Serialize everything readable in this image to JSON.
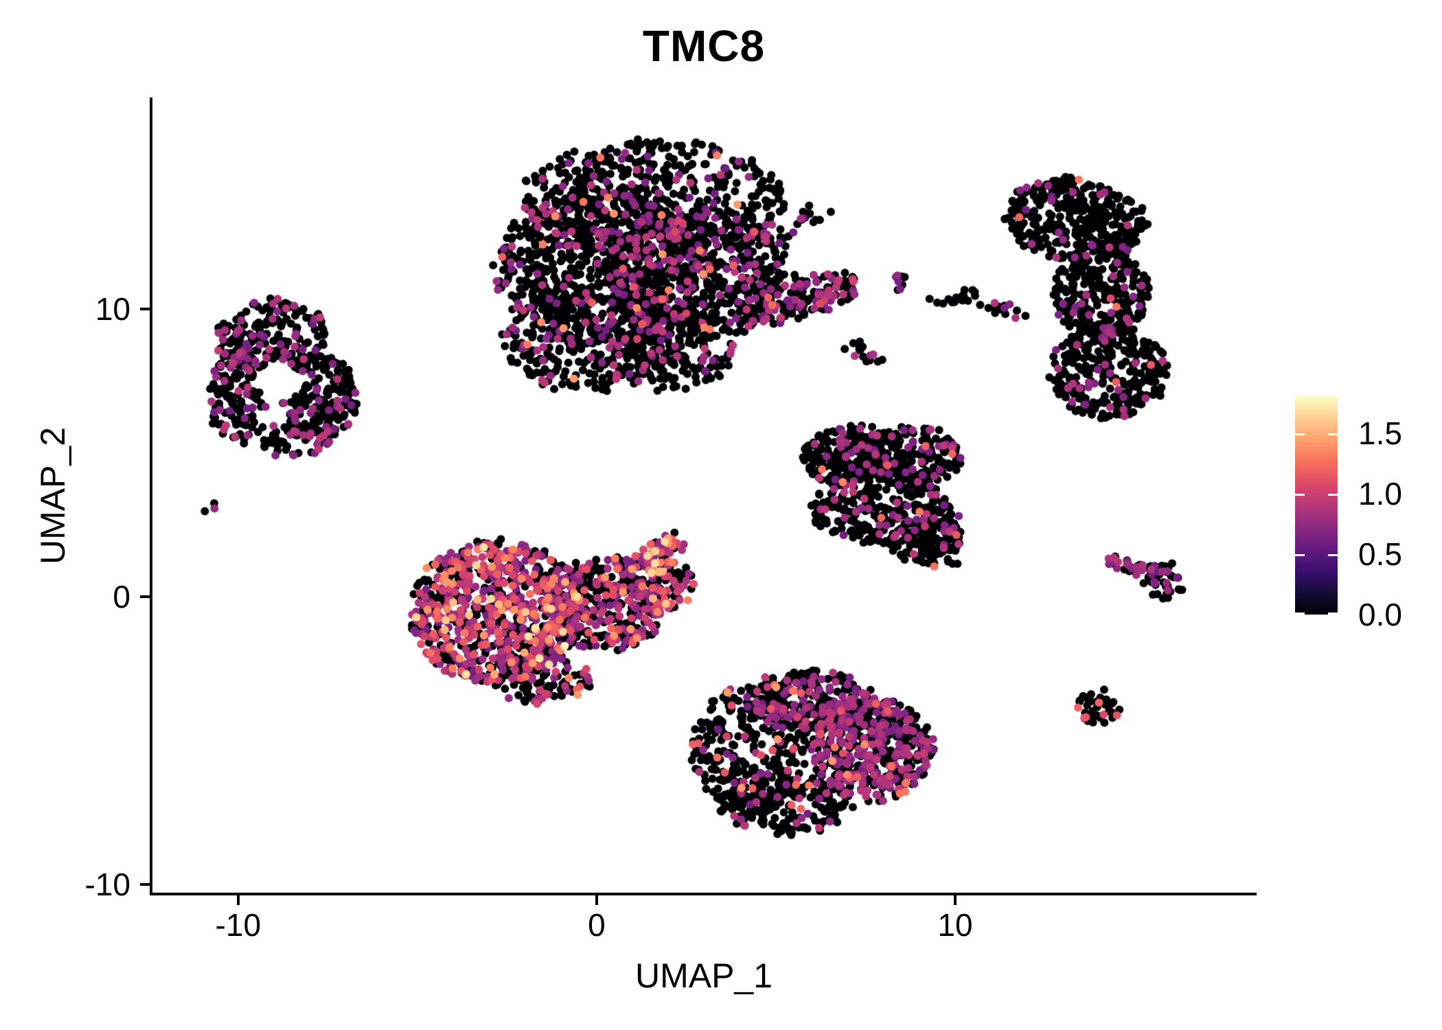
{
  "title": "TMC8",
  "axes": {
    "x": {
      "label": "UMAP_1",
      "range": [
        -12.39,
        18.37
      ],
      "ticks": [
        {
          "v": -10,
          "label": "-10"
        },
        {
          "v": 0,
          "label": "0"
        },
        {
          "v": 10,
          "label": "10"
        }
      ]
    },
    "y": {
      "label": "UMAP_2",
      "range": [
        -10.33,
        17.35
      ],
      "ticks": [
        {
          "v": -10,
          "label": "-10"
        },
        {
          "v": 0,
          "label": "0"
        },
        {
          "v": 10,
          "label": "10"
        }
      ]
    }
  },
  "legend": {
    "vmin": 0,
    "vmax": 1.81,
    "ticks": [
      {
        "v": 0.0,
        "label": "0.0"
      },
      {
        "v": 0.5,
        "label": "0.5"
      },
      {
        "v": 1.0,
        "label": "1.0"
      },
      {
        "v": 1.5,
        "label": "1.5"
      }
    ]
  },
  "colormap": {
    "name": "magma",
    "stops": [
      [
        0.0,
        "#000004"
      ],
      [
        0.1,
        "#140e36"
      ],
      [
        0.2,
        "#3b0f70"
      ],
      [
        0.3,
        "#641a80"
      ],
      [
        0.4,
        "#8c2981"
      ],
      [
        0.5,
        "#b73779"
      ],
      [
        0.6,
        "#de4968"
      ],
      [
        0.7,
        "#f7705c"
      ],
      [
        0.8,
        "#fe9f6d"
      ],
      [
        0.9,
        "#fecf92"
      ],
      [
        1.0,
        "#fcfdbf"
      ]
    ]
  },
  "chart_data": {
    "type": "scatter",
    "title": "TMC8",
    "xlabel": "UMAP_1",
    "ylabel": "UMAP_2",
    "xlim": [
      -12.39,
      18.37
    ],
    "ylim": [
      -10.33,
      17.35
    ],
    "grid": false,
    "legend_position": "right",
    "color_scale": {
      "vmin": 0,
      "vmax": 1.81,
      "colormap": "magma",
      "feature": "TMC8 expression"
    },
    "point_radius_px": 6,
    "point_jitter": 0.14,
    "seed": 11,
    "expression_mixes": {
      "low": [
        [
          0.6,
          0.95,
          0.115
        ],
        [
          1.0,
          1.45,
          0.015
        ]
      ],
      "lowplus": [
        [
          0.6,
          0.95,
          0.16
        ],
        [
          1.0,
          1.45,
          0.02
        ]
      ],
      "verylow": [
        [
          0.6,
          0.9,
          0.07
        ],
        [
          1.0,
          1.3,
          0.004
        ]
      ],
      "verylow2": [
        [
          0.6,
          0.9,
          0.09
        ],
        [
          1.0,
          1.3,
          0.004
        ]
      ],
      "arm1": [
        [
          0.6,
          0.95,
          0.3
        ],
        [
          1.0,
          1.3,
          0.05
        ],
        [
          1.4,
          1.6,
          0.01
        ]
      ],
      "left": [
        [
          0.6,
          0.95,
          0.19
        ]
      ],
      "left2": [
        [
          0.6,
          0.95,
          0.17
        ],
        [
          1.15,
          1.35,
          0.006
        ]
      ],
      "tiny": [
        [
          0.7,
          0.9,
          0.34
        ]
      ],
      "rich": [
        [
          0.6,
          0.95,
          0.32
        ],
        [
          0.95,
          1.15,
          0.17
        ],
        [
          1.15,
          1.45,
          0.09
        ],
        [
          1.45,
          1.8,
          0.025
        ]
      ],
      "richmid": [
        [
          0.6,
          0.95,
          0.3
        ],
        [
          0.95,
          1.15,
          0.08
        ],
        [
          1.15,
          1.45,
          0.05
        ],
        [
          1.45,
          1.8,
          0.018
        ]
      ],
      "armrich": [
        [
          0.6,
          0.95,
          0.3
        ],
        [
          0.95,
          1.15,
          0.2
        ],
        [
          1.15,
          1.45,
          0.2
        ],
        [
          1.45,
          1.7,
          0.05
        ]
      ],
      "richlow": [
        [
          0.6,
          0.95,
          0.22
        ],
        [
          0.95,
          1.15,
          0.06
        ],
        [
          1.15,
          1.45,
          0.04
        ]
      ],
      "tri": [
        [
          0.6,
          0.95,
          0.12
        ],
        [
          1.15,
          1.35,
          0.007
        ]
      ],
      "tritail": [
        [
          0.6,
          0.95,
          0.15
        ],
        [
          1.15,
          1.35,
          0.05
        ]
      ],
      "small1": [
        [
          0.6,
          0.9,
          0.12
        ]
      ],
      "small2": [
        [
          0.6,
          0.9,
          0.14
        ]
      ],
      "chain": [
        [
          0.6,
          0.9,
          0.45
        ]
      ],
      "arrowblob": [
        [
          0.6,
          0.9,
          0.22
        ]
      ],
      "btmleft": [
        [
          0.6,
          0.95,
          0.09
        ],
        [
          0.95,
          1.45,
          0.035
        ]
      ],
      "btmmid": [
        [
          0.6,
          0.95,
          0.36
        ],
        [
          0.95,
          1.45,
          0.03
        ]
      ],
      "btmright": [
        [
          0.6,
          0.95,
          0.4
        ],
        [
          0.95,
          1.2,
          0.03
        ],
        [
          1.2,
          1.45,
          0.015
        ]
      ],
      "btmtail": [
        [
          0.6,
          0.95,
          0.12
        ],
        [
          1.1,
          1.4,
          0.025
        ]
      ],
      "dotright": [
        [
          0.95,
          1.2,
          0.06
        ],
        [
          1.2,
          1.45,
          0.12
        ]
      ]
    },
    "clusters": [
      {
        "name": "top-center",
        "lobes": [
          {
            "x": 1.55,
            "y": 13.82,
            "rx": 3.74,
            "ry": 2.03,
            "rot": 0,
            "n": 520,
            "mix": "low"
          },
          {
            "x": 0.21,
            "y": 11.43,
            "rx": 3.07,
            "ry": 2.63,
            "rot": 0,
            "n": 700,
            "mix": "lowplus"
          },
          {
            "x": 2.7,
            "y": 11.19,
            "rx": 2.49,
            "ry": 2.39,
            "rot": 0,
            "n": 450,
            "mix": "low"
          },
          {
            "x": -0.36,
            "y": 8.81,
            "rx": 2.3,
            "ry": 1.67,
            "rot": 0,
            "n": 300,
            "mix": "lowplus"
          },
          {
            "x": 2.13,
            "y": 8.57,
            "rx": 1.72,
            "ry": 1.43,
            "rot": 0,
            "n": 160,
            "mix": "low"
          },
          {
            "x": 4.81,
            "y": 11.67,
            "rx": 0.96,
            "ry": 1.31,
            "rot": 0,
            "n": 55,
            "mix": "verylow"
          },
          {
            "x": 5.67,
            "y": 10.36,
            "rx": 1.82,
            "ry": 0.67,
            "rot": 21,
            "n": 150,
            "mix": "arm1"
          },
          {
            "x": 6.05,
            "y": 13.22,
            "rx": 0.54,
            "ry": 0.43,
            "rot": 0,
            "n": 14,
            "mix": "low"
          }
        ]
      },
      {
        "name": "top-right-crescent",
        "lobes": [
          {
            "x": 13.33,
            "y": 13.1,
            "rx": 2.01,
            "ry": 1.43,
            "rot": -10,
            "n": 330,
            "mix": "verylow"
          },
          {
            "x": 14.05,
            "y": 10.6,
            "rx": 1.34,
            "ry": 1.79,
            "rot": 0,
            "n": 280,
            "mix": "verylow"
          },
          {
            "x": 14.29,
            "y": 7.85,
            "rx": 1.63,
            "ry": 1.67,
            "rot": 0,
            "n": 300,
            "mix": "verylow2"
          }
        ]
      },
      {
        "name": "left",
        "holes": [
          {
            "x": -8.89,
            "y": 7.49,
            "rx": 0.6,
            "ry": 0.74
          }
        ],
        "lobes": [
          {
            "x": -9.08,
            "y": 9.04,
            "rx": 1.53,
            "ry": 1.31,
            "rot": 15,
            "n": 200,
            "mix": "left"
          },
          {
            "x": -7.84,
            "y": 6.9,
            "rx": 1.15,
            "ry": 1.55,
            "rot": 0,
            "n": 180,
            "mix": "left2"
          },
          {
            "x": -9.94,
            "y": 7.02,
            "rx": 0.86,
            "ry": 1.67,
            "rot": 0,
            "n": 130,
            "mix": "left"
          },
          {
            "x": -8.41,
            "y": 5.47,
            "rx": 1.05,
            "ry": 0.6,
            "rot": 0,
            "n": 60,
            "mix": "left"
          }
        ]
      },
      {
        "name": "left-tiny",
        "lobes": [
          {
            "x": -10.72,
            "y": 3.15,
            "rx": 0.22,
            "ry": 0.25,
            "rot": 0,
            "n": 3,
            "mix": "tiny"
          }
        ]
      },
      {
        "name": "center-left-rich",
        "lobes": [
          {
            "x": -2.85,
            "y": -0.5,
            "rx": 2.39,
            "ry": 2.51,
            "rot": 0,
            "n": 800,
            "mix": "rich"
          },
          {
            "x": 0.21,
            "y": -0.26,
            "rx": 1.72,
            "ry": 1.67,
            "rot": 0,
            "n": 350,
            "mix": "richmid"
          },
          {
            "x": 1.55,
            "y": 0.45,
            "rx": 1.15,
            "ry": 1.07,
            "rot": 0,
            "n": 130,
            "mix": "richmid"
          },
          {
            "x": 1.84,
            "y": 1.53,
            "rx": 0.86,
            "ry": 0.48,
            "rot": 53,
            "n": 55,
            "mix": "armrich"
          },
          {
            "x": -1.51,
            "y": -2.89,
            "rx": 1.34,
            "ry": 0.84,
            "rot": 0,
            "n": 110,
            "mix": "richlow"
          }
        ]
      },
      {
        "name": "center-right-triangle",
        "lobes": [
          {
            "x": 7.11,
            "y": 4.87,
            "rx": 1.44,
            "ry": 1.07,
            "rot": 0,
            "n": 220,
            "mix": "tri"
          },
          {
            "x": 8.83,
            "y": 4.87,
            "rx": 1.34,
            "ry": 1.07,
            "rot": 0,
            "n": 200,
            "mix": "tri"
          },
          {
            "x": 7.87,
            "y": 3.08,
            "rx": 1.92,
            "ry": 1.31,
            "rot": 0,
            "n": 260,
            "mix": "tri"
          },
          {
            "x": 9.21,
            "y": 1.89,
            "rx": 0.96,
            "ry": 0.84,
            "rot": 0,
            "n": 110,
            "mix": "tri"
          },
          {
            "x": 9.89,
            "y": 2.1,
            "rx": 0.25,
            "ry": 1.2,
            "rot": 0,
            "n": 30,
            "mix": "tritail"
          }
        ]
      },
      {
        "name": "small-islands",
        "lobes": [
          {
            "x": 8.45,
            "y": 10.91,
            "rx": 0.23,
            "ry": 0.29,
            "rot": 0,
            "n": 9,
            "mix": "small1"
          },
          {
            "x": 9.98,
            "y": 10.43,
            "rx": 0.73,
            "ry": 0.24,
            "rot": 16,
            "n": 16,
            "mix": "small1"
          },
          {
            "x": 11.32,
            "y": 9.95,
            "rx": 0.67,
            "ry": 0.24,
            "rot": -20,
            "n": 14,
            "mix": "small1"
          },
          {
            "x": 7.53,
            "y": 8.45,
            "rx": 0.8,
            "ry": 0.33,
            "rot": -25,
            "n": 16,
            "mix": "small2"
          }
        ]
      },
      {
        "name": "right-arrow",
        "lobes": [
          {
            "x": 14.96,
            "y": 1.05,
            "rx": 0.77,
            "ry": 0.24,
            "rot": -15,
            "n": 30,
            "mix": "chain"
          },
          {
            "x": 15.82,
            "y": 0.57,
            "rx": 0.57,
            "ry": 0.6,
            "rot": 0,
            "n": 50,
            "mix": "arrowblob"
          }
        ]
      },
      {
        "name": "bottom-center",
        "lobes": [
          {
            "x": 4.23,
            "y": -5.27,
            "rx": 1.63,
            "ry": 2.15,
            "rot": 0,
            "n": 270,
            "mix": "btmleft"
          },
          {
            "x": 5.96,
            "y": -3.6,
            "rx": 1.72,
            "ry": 1.07,
            "rot": 0,
            "n": 260,
            "mix": "btmmid"
          },
          {
            "x": 7.68,
            "y": -5.27,
            "rx": 1.72,
            "ry": 1.79,
            "rot": 0,
            "n": 520,
            "mix": "btmright"
          },
          {
            "x": 5.19,
            "y": -7.18,
            "rx": 1.92,
            "ry": 1.07,
            "rot": 0,
            "n": 200,
            "mix": "btmtail"
          }
        ]
      },
      {
        "name": "bottom-right-dot",
        "lobes": [
          {
            "x": 14.0,
            "y": -3.84,
            "rx": 0.57,
            "ry": 0.64,
            "rot": 0,
            "n": 40,
            "mix": "dotright"
          }
        ]
      }
    ]
  }
}
